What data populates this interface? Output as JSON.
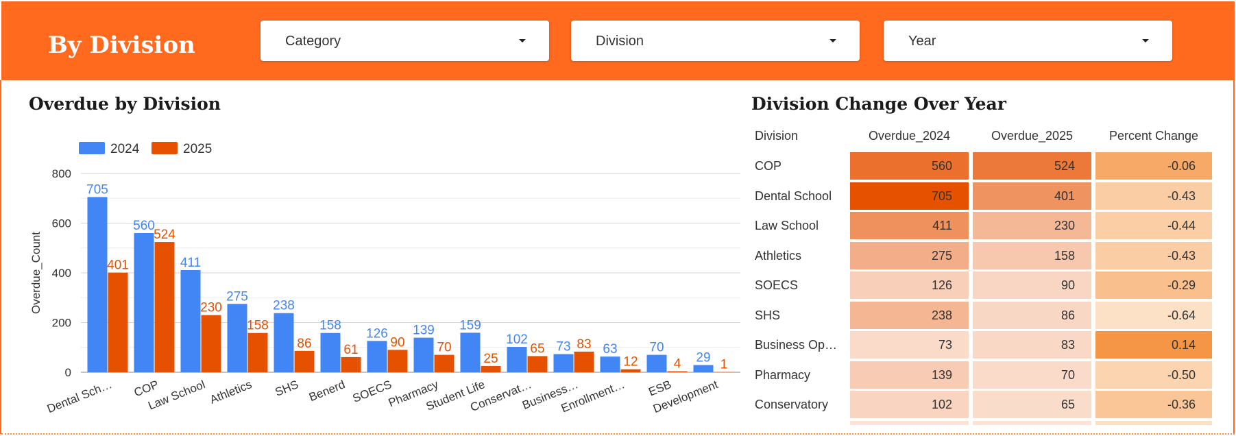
{
  "header": {
    "title": "By Division",
    "filters": [
      {
        "label": "Category"
      },
      {
        "label": "Division"
      },
      {
        "label": "Year"
      }
    ]
  },
  "colors": {
    "header_bg": "#ff6a1f",
    "series_2024": "#4285f4",
    "series_2025": "#e65100"
  },
  "chart_data": {
    "type": "bar",
    "title": "Overdue by Division",
    "xlabel": "",
    "ylabel": "Overdue_Count",
    "ylim": [
      0,
      800
    ],
    "yticks": [
      0,
      200,
      400,
      600,
      800
    ],
    "grid": true,
    "legend": "top-left",
    "categories": [
      "Dental Sch…",
      "COP",
      "Law School",
      "Athletics",
      "SHS",
      "Benerd",
      "SOECS",
      "Pharmacy",
      "Student Life",
      "Conservat…",
      "Business…",
      "Enrollment…",
      "ESB",
      "Development"
    ],
    "series": [
      {
        "name": "2024",
        "color": "#4285f4",
        "values": [
          705,
          560,
          411,
          275,
          238,
          158,
          126,
          139,
          159,
          102,
          73,
          63,
          70,
          29
        ]
      },
      {
        "name": "2025",
        "color": "#e65100",
        "values": [
          401,
          524,
          230,
          158,
          86,
          61,
          90,
          70,
          25,
          65,
          83,
          12,
          4,
          1
        ]
      }
    ]
  },
  "table": {
    "title": "Division Change Over Year",
    "columns": [
      "Division",
      "Overdue_2024",
      "Overdue_2025",
      "Percent Change"
    ],
    "rows": [
      {
        "division": "COP",
        "o2024": 560,
        "o2025": 524,
        "pct": "-0.06",
        "pct_value": -0.06
      },
      {
        "division": "Dental School",
        "o2024": 705,
        "o2025": 401,
        "pct": "-0.43",
        "pct_value": -0.43
      },
      {
        "division": "Law School",
        "o2024": 411,
        "o2025": 230,
        "pct": "-0.44",
        "pct_value": -0.44
      },
      {
        "division": "Athletics",
        "o2024": 275,
        "o2025": 158,
        "pct": "-0.43",
        "pct_value": -0.43
      },
      {
        "division": "SOECS",
        "o2024": 126,
        "o2025": 90,
        "pct": "-0.29",
        "pct_value": -0.29
      },
      {
        "division": "SHS",
        "o2024": 238,
        "o2025": 86,
        "pct": "-0.64",
        "pct_value": -0.64
      },
      {
        "division": "Business Op…",
        "o2024": 73,
        "o2025": 83,
        "pct": "0.14",
        "pct_value": 0.14
      },
      {
        "division": "Pharmacy",
        "o2024": 139,
        "o2025": 70,
        "pct": "-0.50",
        "pct_value": -0.5
      },
      {
        "division": "Conservatory",
        "o2024": 102,
        "o2025": 65,
        "pct": "-0.36",
        "pct_value": -0.36
      }
    ]
  }
}
